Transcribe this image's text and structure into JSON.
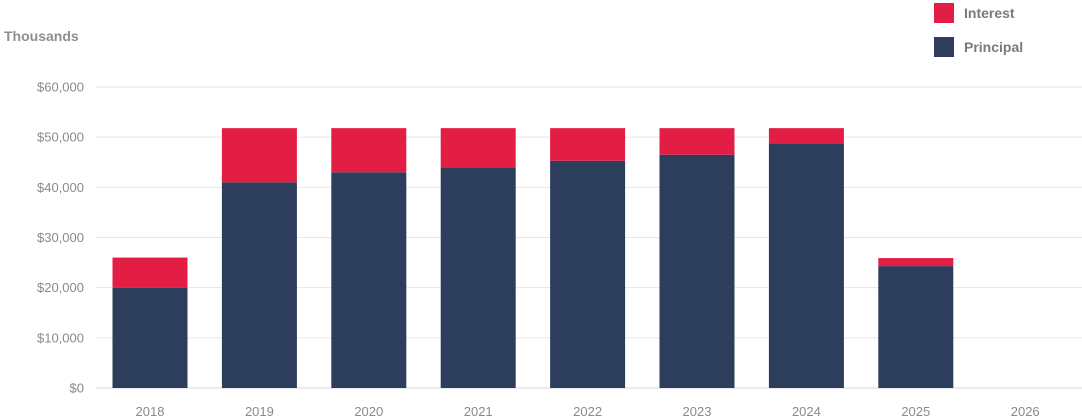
{
  "chart_data": {
    "type": "bar",
    "stacked": true,
    "units_label": "Thousands",
    "categories": [
      "2018",
      "2019",
      "2020",
      "2021",
      "2022",
      "2023",
      "2024",
      "2025",
      "2026"
    ],
    "series": [
      {
        "name": "Principal",
        "color": "#2d3d5c",
        "values": [
          20000,
          41000,
          43000,
          44000,
          45300,
          46500,
          48800,
          24300,
          0
        ]
      },
      {
        "name": "Interest",
        "color": "#e31e45",
        "values": [
          6000,
          10800,
          8800,
          7800,
          6500,
          5300,
          3000,
          1600,
          0
        ]
      }
    ],
    "ylim": [
      0,
      60000
    ],
    "yticks": [
      0,
      10000,
      20000,
      30000,
      40000,
      50000,
      60000
    ],
    "ytick_labels": [
      "$0",
      "$10,000",
      "$20,000",
      "$30,000",
      "$40,000",
      "$50,000",
      "$60,000"
    ],
    "grid": true,
    "legend_position": "top-right",
    "legend": [
      {
        "name": "Interest",
        "color": "#e31e45"
      },
      {
        "name": "Principal",
        "color": "#2d3d5c"
      }
    ]
  }
}
